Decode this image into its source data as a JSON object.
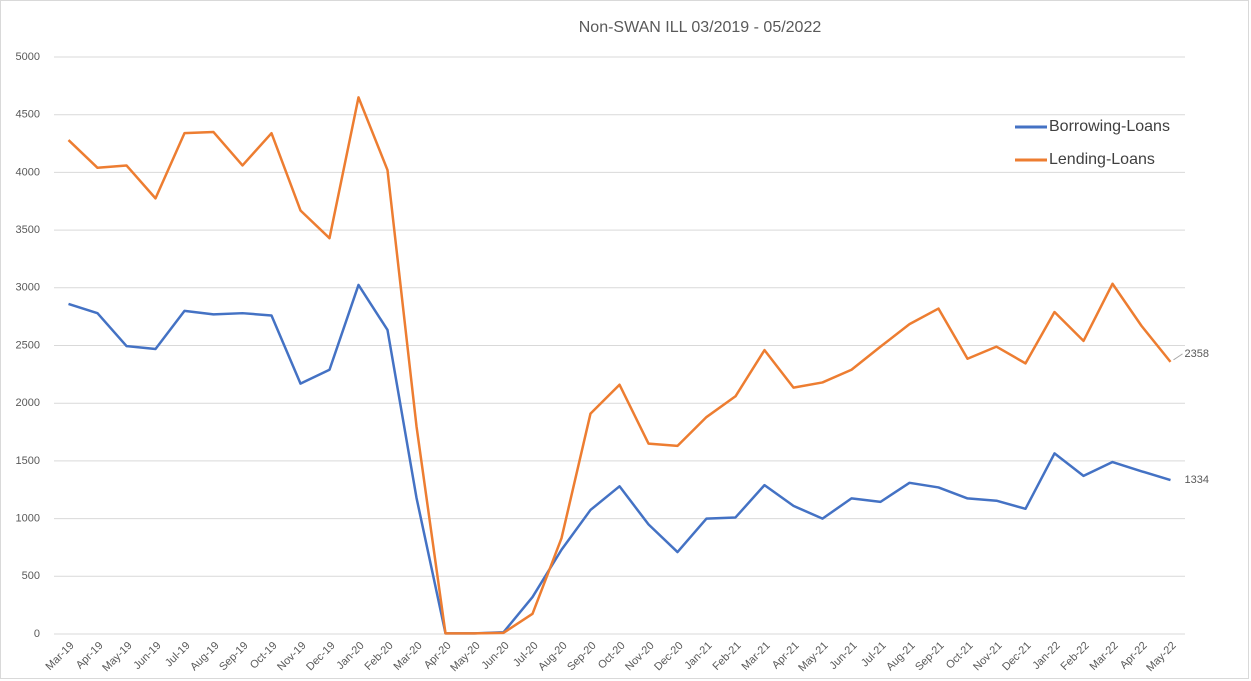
{
  "chart_data": {
    "type": "line",
    "title": "Non-SWAN ILL 03/2019 - 05/2022",
    "categories": [
      "Mar-19",
      "Apr-19",
      "May-19",
      "Jun-19",
      "Jul-19",
      "Aug-19",
      "Sep-19",
      "Oct-19",
      "Nov-19",
      "Dec-19",
      "Jan-20",
      "Feb-20",
      "Mar-20",
      "Apr-20",
      "May-20",
      "Jun-20",
      "Jul-20",
      "Aug-20",
      "Sep-20",
      "Oct-20",
      "Nov-20",
      "Dec-20",
      "Jan-21",
      "Feb-21",
      "Mar-21",
      "Apr-21",
      "May-21",
      "Jun-21",
      "Jul-21",
      "Aug-21",
      "Sep-21",
      "Oct-21",
      "Nov-21",
      "Dec-21",
      "Jan-22",
      "Feb-22",
      "Mar-22",
      "Apr-22",
      "May-22"
    ],
    "series": [
      {
        "name": "Borrowing-Loans",
        "color": "#4472c4",
        "values": [
          2860,
          2780,
          2495,
          2470,
          2800,
          2770,
          2780,
          2760,
          2170,
          2290,
          3025,
          2635,
          1180,
          5,
          5,
          15,
          320,
          730,
          1075,
          1280,
          950,
          710,
          1000,
          1010,
          1290,
          1110,
          1000,
          1175,
          1145,
          1310,
          1270,
          1175,
          1155,
          1085,
          1565,
          1370,
          1490,
          1410,
          1334
        ]
      },
      {
        "name": "Lending-Loans",
        "color": "#ed7d31",
        "values": [
          4280,
          4040,
          4060,
          3775,
          4340,
          4350,
          4060,
          4340,
          3670,
          3430,
          4650,
          4020,
          1800,
          5,
          5,
          10,
          175,
          830,
          1910,
          2160,
          1650,
          1630,
          1880,
          2060,
          2460,
          2135,
          2180,
          2290,
          2490,
          2685,
          2820,
          2385,
          2490,
          2345,
          2790,
          2540,
          3035,
          2670,
          2358
        ]
      }
    ],
    "ylim": [
      0,
      5000
    ],
    "yticks": [
      0,
      500,
      1000,
      1500,
      2000,
      2500,
      3000,
      3500,
      4000,
      4500,
      5000
    ],
    "grid": true,
    "legend": "upper right"
  }
}
